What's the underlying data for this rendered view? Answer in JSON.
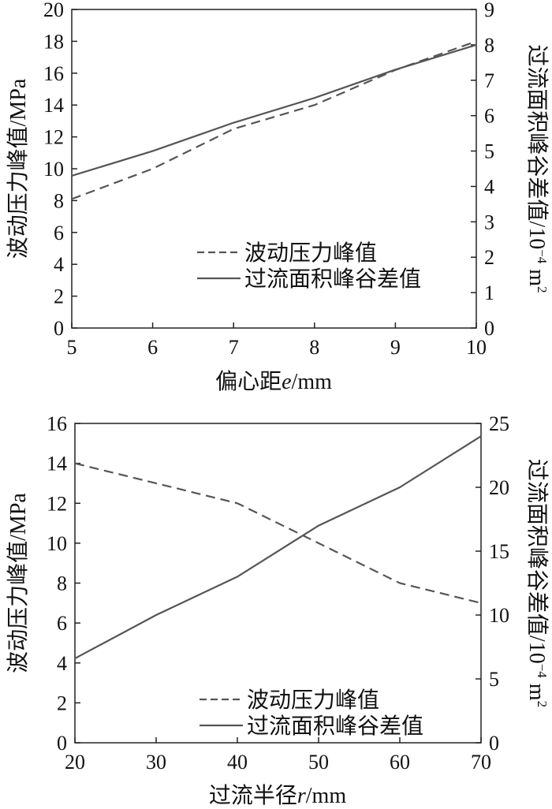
{
  "chart_data": [
    {
      "type": "line",
      "x": [
        5,
        6,
        7,
        8,
        9,
        10
      ],
      "xlabel": {
        "prefix": "偏心距",
        "var": "e",
        "suffix": "/mm"
      },
      "ylabel": "波动压力峰值/MPa",
      "y2label": {
        "main": "过流面积峰谷差值/10",
        "exp": "−4",
        "unit": " m",
        "unit_exp": "2"
      },
      "xlim": [
        5,
        10
      ],
      "xticks": [
        "5",
        "6",
        "7",
        "8",
        "9",
        "10"
      ],
      "ylim": [
        0,
        20
      ],
      "yticks": [
        "0",
        "2",
        "4",
        "6",
        "8",
        "10",
        "12",
        "14",
        "16",
        "18",
        "20"
      ],
      "y2lim": [
        0,
        9
      ],
      "y2ticks": [
        "0",
        "1",
        "2",
        "3",
        "4",
        "5",
        "6",
        "7",
        "8",
        "9"
      ],
      "legend_position": "lower-right",
      "series": [
        {
          "name": "波动压力峰值",
          "axis": "left",
          "style": "dashed",
          "values": [
            8.1,
            10.0,
            12.5,
            14.0,
            16.2,
            18.0
          ]
        },
        {
          "name": "过流面积峰谷差值",
          "axis": "right",
          "style": "solid",
          "values": [
            4.3,
            5.0,
            5.8,
            6.5,
            7.3,
            8.0
          ]
        }
      ],
      "color": "#555555"
    },
    {
      "type": "line",
      "x": [
        20,
        30,
        40,
        50,
        60,
        70
      ],
      "xlabel": {
        "prefix": "过流半径",
        "var": "r",
        "suffix": "/mm"
      },
      "ylabel": "波动压力峰值/MPa",
      "y2label": {
        "main": "过流面积峰谷差值/10",
        "exp": "−4",
        "unit": " m",
        "unit_exp": "2"
      },
      "xlim": [
        20,
        70
      ],
      "xticks": [
        "20",
        "30",
        "40",
        "50",
        "60",
        "70"
      ],
      "ylim": [
        0,
        16
      ],
      "yticks": [
        "0",
        "2",
        "4",
        "6",
        "8",
        "10",
        "12",
        "14",
        "16"
      ],
      "y2lim": [
        0,
        25
      ],
      "y2ticks": [
        "0",
        "5",
        "10",
        "15",
        "20",
        "25"
      ],
      "legend_position": "lower-right",
      "series": [
        {
          "name": "波动压力峰值",
          "axis": "left",
          "style": "dashed",
          "values": [
            14.0,
            13.0,
            12.0,
            10.0,
            8.0,
            7.0
          ]
        },
        {
          "name": "过流面积峰谷差值",
          "axis": "right",
          "style": "solid",
          "values": [
            6.6,
            10.0,
            13.0,
            17.0,
            20.0,
            24.0
          ]
        }
      ],
      "color": "#555555"
    }
  ]
}
